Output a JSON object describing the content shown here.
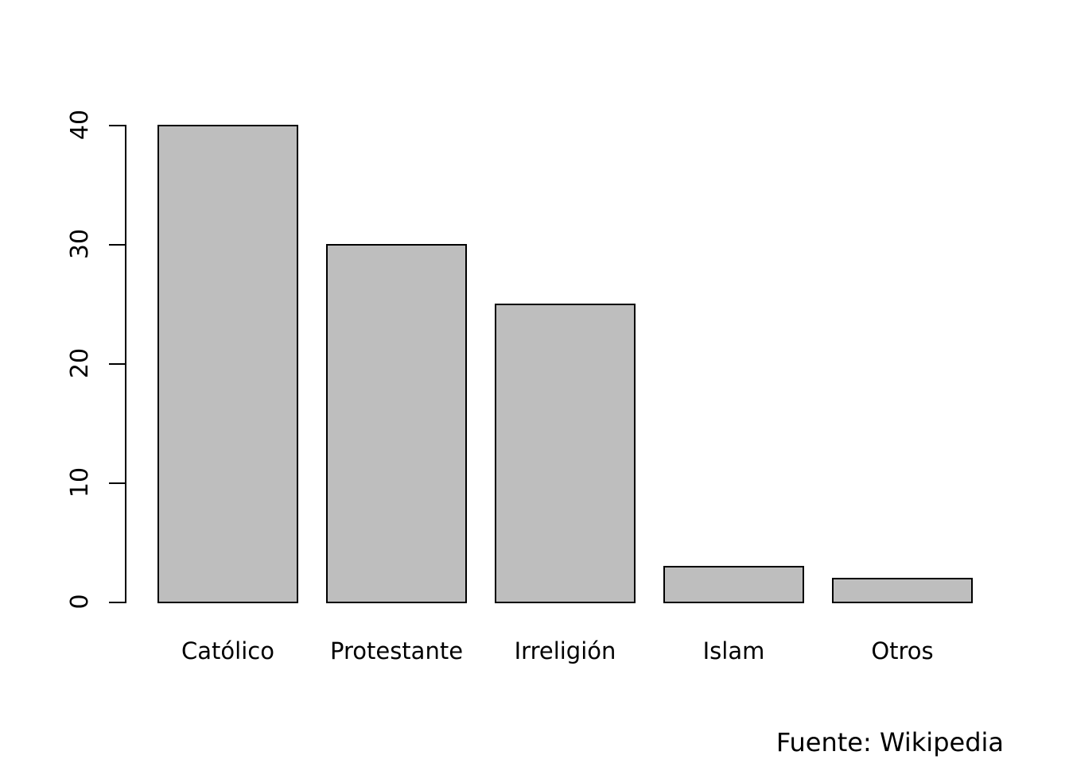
{
  "chart_data": {
    "type": "bar",
    "categories": [
      "Católico",
      "Protestante",
      "Irreligión",
      "Islam",
      "Otros"
    ],
    "values": [
      40,
      30,
      25,
      3,
      2
    ],
    "title": "",
    "xlabel": "",
    "ylabel": "",
    "ylim": [
      0,
      40
    ],
    "y_ticks": [
      0,
      10,
      20,
      30,
      40
    ],
    "caption": "Fuente: Wikipedia",
    "bar_fill_color": "#bebebe",
    "bar_border_color": "#000000",
    "axis_color": "#000000",
    "background_color": "#ffffff",
    "grid": false,
    "legend_position": "none"
  }
}
